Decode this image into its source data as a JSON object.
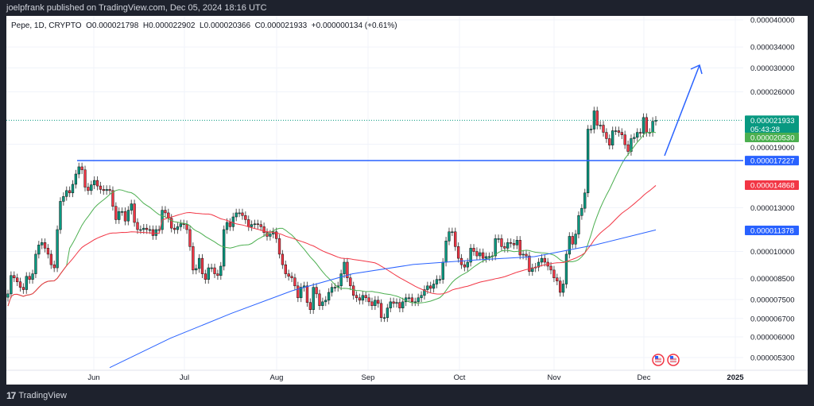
{
  "header": {
    "published": "joelpfrank published on TradingView.com, Dec 05, 2024 18:16 UTC"
  },
  "legend": {
    "symbol": "Pepe, 1D, CRYPTO",
    "open": "O0.000021798",
    "high": "H0.000022902",
    "low": "L0.000020366",
    "close": "C0.000021933",
    "change": "+0.000000134 (+0.61%)"
  },
  "footer": {
    "brand": "TradingView",
    "logo_text": "17"
  },
  "colors": {
    "up": "#089981",
    "down": "#f23645",
    "ma_fast": "#4caf50",
    "ma_mid": "#f23645",
    "ma_slow": "#2962ff",
    "drawing": "#2962ff"
  },
  "chart_data": {
    "type": "candlestick",
    "y_scale": "log",
    "ylim": [
      4.9e-06,
      4.15e-05
    ],
    "grid": true,
    "y_ticks": [
      "0.000040000",
      "0.000034000",
      "0.000030000",
      "0.000026000",
      "0.000019000",
      "0.000013000",
      "0.000010000",
      "0.000008500",
      "0.000007500",
      "0.000006700",
      "0.000006000",
      "0.000005300"
    ],
    "x_ticks": [
      "Jun",
      "Jul",
      "Aug",
      "Sep",
      "Oct",
      "Nov",
      "Dec",
      "2025"
    ],
    "closes": [
      7.76e-06,
      8.66e-06,
      8.54e-06,
      8.34e-06,
      8.07e-06,
      7.96e-06,
      8.62e-06,
      8.46e-06,
      8.75e-06,
      9.84e-06,
      1.04e-05,
      1.055e-05,
      1.02e-05,
      9.84e-06,
      9.24e-06,
      9.07e-06,
      1.14e-05,
      1.35e-05,
      1.39e-05,
      1.44e-05,
      1.42e-05,
      1.495e-05,
      1.59e-05,
      1.66e-05,
      1.63e-05,
      1.47e-05,
      1.44e-05,
      1.49e-05,
      1.53e-05,
      1.48e-05,
      1.45e-05,
      1.44e-05,
      1.45e-05,
      1.44e-05,
      1.31e-05,
      1.21e-05,
      1.27e-05,
      1.27e-05,
      1.2e-05,
      1.28e-05,
      1.33e-05,
      1.19e-05,
      1.14e-05,
      1.14e-05,
      1.15e-05,
      1.14e-05,
      1.14e-05,
      1.1e-05,
      1.14e-05,
      1.14e-05,
      1.28e-05,
      1.26e-05,
      1.22e-05,
      1.15e-05,
      1.14e-05,
      1.16e-05,
      1.18e-05,
      1.175e-05,
      1.14e-05,
      1.03e-05,
      8.95e-06,
      9.03e-06,
      9.6e-06,
      8.75e-06,
      8.46e-06,
      9.07e-06,
      9.07e-06,
      8.75e-06,
      8.66e-06,
      9.16e-06,
      1.14e-05,
      1.19e-05,
      1.16e-05,
      1.23e-05,
      1.26e-05,
      1.26e-05,
      1.24e-05,
      1.21e-05,
      1.16e-05,
      1.175e-05,
      1.18e-05,
      1.175e-05,
      1.16e-05,
      1.12e-05,
      1.095e-05,
      1.11e-05,
      1.125e-05,
      1.08e-05,
      9.84e-06,
      9.24e-06,
      8.75e-06,
      8.62e-06,
      8.54e-06,
      8.14e-06,
      7.58e-06,
      8.07e-06,
      8.14e-06,
      7.37e-06,
      7.06e-06,
      8.07e-06,
      7.76e-06,
      7.23e-06,
      7.4e-06,
      7.47e-06,
      7.83e-06,
      8.07e-06,
      8.07e-06,
      8.14e-06,
      8.75e-06,
      9.38e-06,
      8.54e-06,
      8.14e-06,
      7.69e-06,
      7.58e-06,
      7.47e-06,
      7.69e-06,
      7.58e-06,
      7.4e-06,
      7.23e-06,
      7.47e-06,
      7.33e-06,
      6.73e-06,
      6.73e-06,
      7.13e-06,
      7.4e-06,
      7.33e-06,
      7.37e-06,
      7.13e-06,
      7.4e-06,
      7.58e-06,
      7.58e-06,
      7.4e-06,
      7.4e-06,
      7.58e-06,
      7.69e-06,
      7.96e-06,
      8.14e-06,
      8.02e-06,
      8.23e-06,
      8.46e-06,
      8.46e-06,
      9.38e-06,
      1.065e-05,
      1.125e-05,
      1.125e-05,
      1.03e-05,
      9.6e-06,
      9.24e-06,
      9.11e-06,
      9.38e-06,
      1.02e-05,
      1e-05,
      9.74e-06,
      9.93e-06,
      9.6e-06,
      9.7e-06,
      9.7e-06,
      9.74e-06,
      1.08e-05,
      1.08e-05,
      1.03e-05,
      1.02e-05,
      1.055e-05,
      1.05e-05,
      1.04e-05,
      1.07e-05,
      9.79e-06,
      9.84e-06,
      9.74e-06,
      8.87e-06,
      9.07e-06,
      9.11e-06,
      9.38e-06,
      9.6e-06,
      9.38e-06,
      9.16e-06,
      8.95e-06,
      8.54e-06,
      8.38e-06,
      7.83e-06,
      8.23e-06,
      9.84e-06,
      1.095e-05,
      1.045e-05,
      1.11e-05,
      1.24e-05,
      1.295e-05,
      1.42e-05,
      2.08e-05,
      2.08e-05,
      2.32e-05,
      2.13e-05,
      2.13e-05,
      2.04e-05,
      1.965e-05,
      1.89e-05,
      2.06e-05,
      2.06e-05,
      2.04e-05,
      2.01e-05,
      1.895e-05,
      1.82e-05,
      1.965e-05,
      1.98e-05,
      2.04e-05,
      2.03e-05,
      2.23e-05,
      2.04e-05,
      2.04e-05,
      2.18e-05,
      2.1933e-05
    ],
    "moving_averages": [
      {
        "color": "#4caf50",
        "period": 20,
        "last": "0.000020530"
      },
      {
        "color": "#f23645",
        "period": 50,
        "last": "0.000014868"
      },
      {
        "color": "#2962ff",
        "last": "0.000011378",
        "values": [
          4.99e-06,
          5.95e-06,
          6.9e-06,
          7.9e-06,
          8.75e-06,
          9.25e-06,
          9.5e-06,
          9.7e-06,
          1.04e-05,
          1.1378e-05
        ]
      }
    ],
    "horizontal_line": {
      "price": 1.7227e-05,
      "label": "0.000017227"
    },
    "last_price": {
      "label": "0.000021933",
      "countdown": "05:43:28"
    },
    "events": [
      "us-flag-icon",
      "us-flag-icon"
    ]
  }
}
